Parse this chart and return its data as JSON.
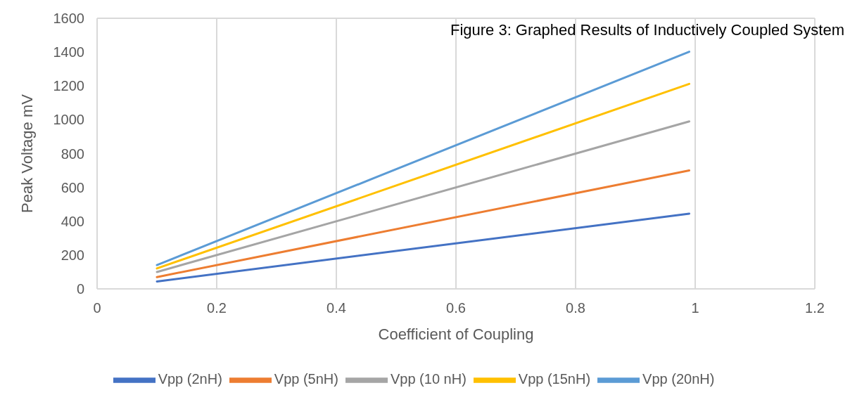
{
  "chart_data": {
    "type": "line",
    "title": "Figure 3: Graphed Results of Inductively Coupled System",
    "xlabel": "Coefficient of Coupling",
    "ylabel": "Peak Voltage mV",
    "x": [
      0.1,
      0.99
    ],
    "series": [
      {
        "name": "Vpp (2nH)",
        "color": "#4472c4",
        "values": [
          44,
          445
        ]
      },
      {
        "name": "Vpp (5nH)",
        "color": "#ed7d31",
        "values": [
          70,
          700
        ]
      },
      {
        "name": "Vpp (10 nH)",
        "color": "#a5a5a5",
        "values": [
          100,
          990
        ]
      },
      {
        "name": "Vpp (15nH)",
        "color": "#ffc000",
        "values": [
          121,
          1212
        ]
      },
      {
        "name": "Vpp (20nH)",
        "color": "#5b9bd5",
        "values": [
          141,
          1402
        ]
      }
    ],
    "xlim": [
      0,
      1.2
    ],
    "xticks": [
      0,
      0.2,
      0.4,
      0.6,
      0.8,
      1,
      1.2
    ],
    "ylim": [
      0,
      1600
    ],
    "yticks": [
      0,
      200,
      400,
      600,
      800,
      1000,
      1200,
      1400,
      1600
    ],
    "grid": true,
    "legend": "bottom",
    "marker": "none",
    "line_style": "solid"
  }
}
